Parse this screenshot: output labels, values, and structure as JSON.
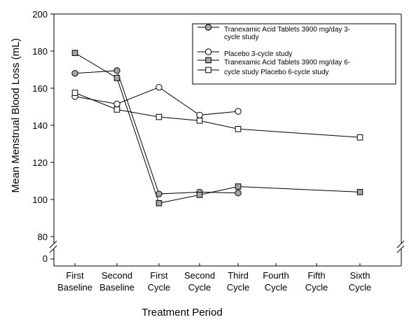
{
  "chart_data": {
    "type": "line",
    "title": "",
    "xlabel": "Treatment Period",
    "ylabel": "Mean Menstrual Blood Loss (mL)",
    "ylim": [
      80,
      200
    ],
    "y_axis_break_label": "0",
    "y_ticks": [
      80,
      100,
      120,
      140,
      160,
      180,
      200
    ],
    "categories": [
      [
        "First",
        "Baseline"
      ],
      [
        "Second",
        "Baseline"
      ],
      [
        "First",
        "Cycle"
      ],
      [
        "Second",
        "Cycle"
      ],
      [
        "Third",
        "Cycle"
      ],
      [
        "Fourth",
        "Cycle"
      ],
      [
        "Fifth",
        "Cycle"
      ],
      [
        "Sixth",
        "Cycle"
      ]
    ],
    "grid": false,
    "legend_position": "top-right",
    "legend": [
      {
        "lines": [
          "Tranexamic Acid Tablets 3900 mg/day 3-",
          "cycle study"
        ],
        "marker": "circle",
        "fill": "#a6a6a6"
      },
      {
        "lines": [
          "Placebo 3-cycle study"
        ],
        "marker": "circle",
        "fill": "#ffffff"
      },
      {
        "lines": [
          "Tranexamic Acid Tablets 3900 mg/day 6-"
        ],
        "marker": "square",
        "fill": "#a6a6a6"
      },
      {
        "lines": [
          "cycle study  Placebo 6-cycle study"
        ],
        "marker": "square",
        "fill": "#ffffff"
      }
    ],
    "series": [
      {
        "marker": "circle",
        "fill": "#a6a6a6",
        "points": [
          [
            0,
            168
          ],
          [
            1,
            169.5
          ],
          [
            2,
            103
          ],
          [
            3,
            104
          ],
          [
            4,
            103.5
          ]
        ]
      },
      {
        "marker": "circle",
        "fill": "#ffffff",
        "points": [
          [
            0,
            155.5
          ],
          [
            1,
            151.5
          ],
          [
            2,
            160.5
          ],
          [
            3,
            145.5
          ],
          [
            4,
            147.5
          ]
        ]
      },
      {
        "marker": "square",
        "fill": "#a6a6a6",
        "points": [
          [
            0,
            179
          ],
          [
            1,
            165.5
          ],
          [
            2,
            98
          ],
          [
            3,
            102.5
          ],
          [
            4,
            107
          ],
          [
            7,
            104
          ]
        ]
      },
      {
        "marker": "square",
        "fill": "#ffffff",
        "points": [
          [
            0,
            157.5
          ],
          [
            1,
            148.5
          ],
          [
            2,
            144.5
          ],
          [
            3,
            142.5
          ],
          [
            4,
            138
          ],
          [
            7,
            133.5
          ]
        ]
      }
    ]
  }
}
